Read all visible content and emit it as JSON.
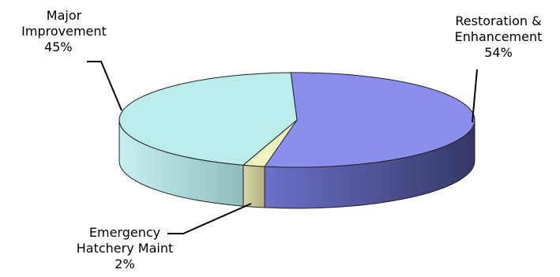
{
  "chart_data": {
    "type": "pie",
    "style": "3d",
    "title": "",
    "slices": [
      {
        "label_lines": [
          "Restoration &",
          "Enhancement"
        ],
        "value": 54,
        "value_label": "54%",
        "color_top": "#8A8FEE",
        "color_side_light": "#6C70C8",
        "color_side_dark": "#353866"
      },
      {
        "label_lines": [
          "Emergency",
          "Hatchery Maint"
        ],
        "value": 2,
        "value_label": "2%",
        "color_top": "#F3F3C2",
        "color_side_light": "#D8D6A4",
        "color_side_dark": "#B3B07F"
      },
      {
        "label_lines": [
          "Major",
          "Improvement"
        ],
        "value": 45,
        "value_label": "45%",
        "color_top": "#BCEBEB",
        "color_side_light": "#C8F0F0",
        "color_side_dark": "#8FBDBD"
      }
    ]
  }
}
